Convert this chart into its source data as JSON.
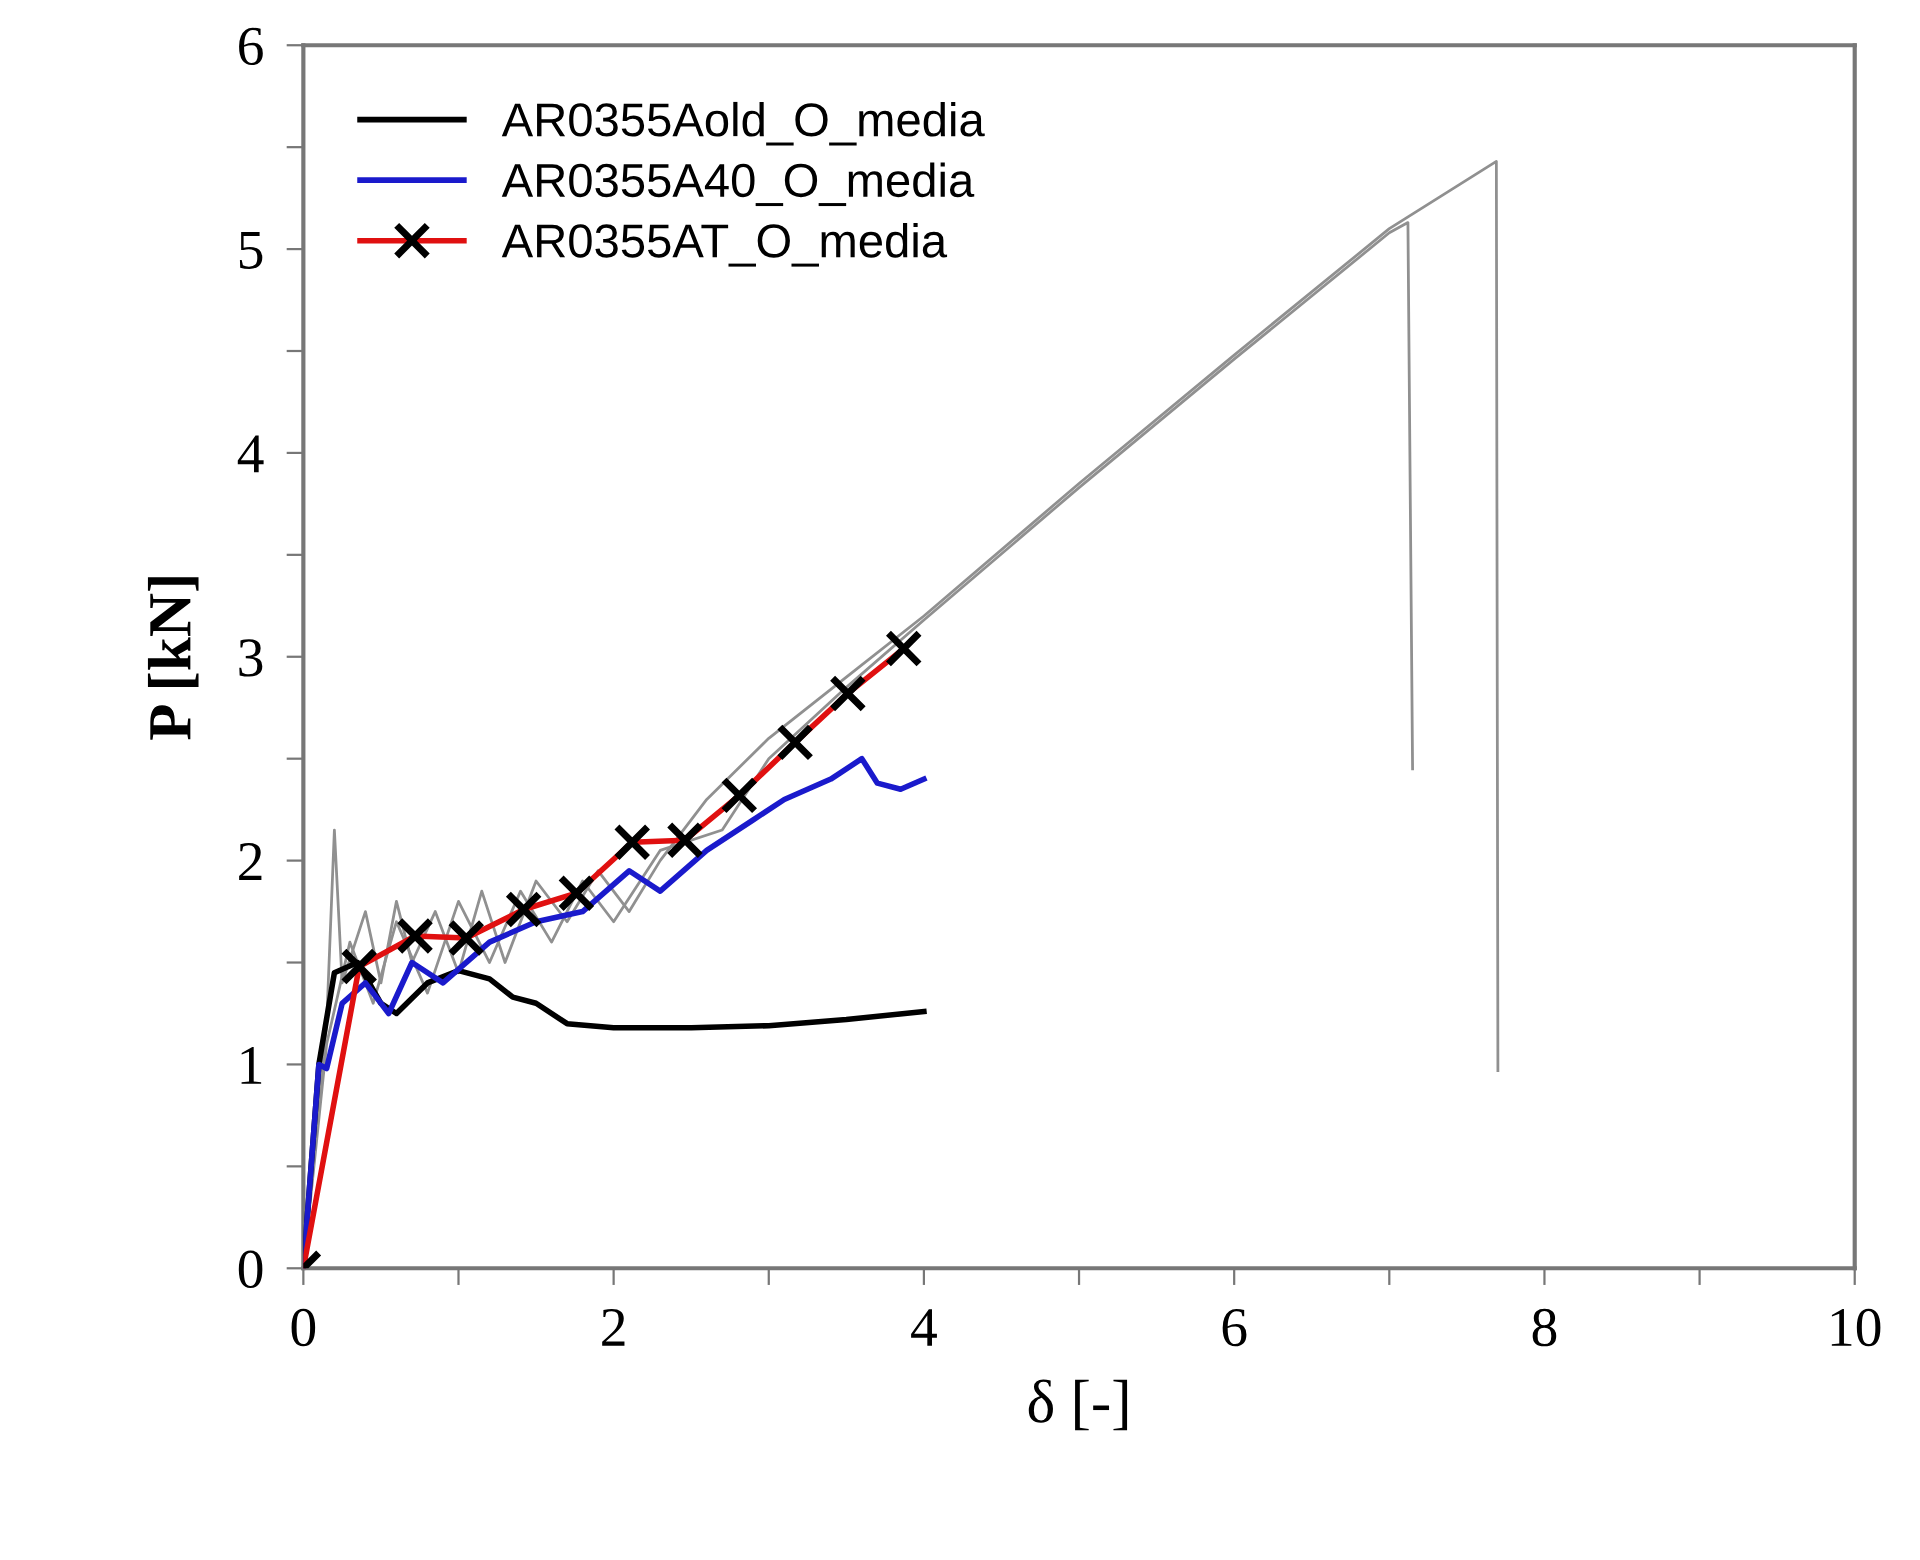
{
  "chart_data": {
    "type": "line",
    "xlabel": "δ [-]",
    "ylabel": "P [kN]",
    "xlim": [
      0,
      10
    ],
    "ylim": [
      0,
      6
    ],
    "xticks": [
      0,
      {
        "value": 1,
        "label": null
      },
      2,
      {
        "value": 3,
        "label": null
      },
      4,
      {
        "value": 5,
        "label": null
      },
      6,
      {
        "value": 7,
        "label": null
      },
      8,
      {
        "value": 9,
        "label": null
      },
      10
    ],
    "yticks": [
      0,
      {
        "value": 0.5,
        "label": null
      },
      1,
      {
        "value": 1.5,
        "label": null
      },
      2,
      {
        "value": 2.5,
        "label": null
      },
      3,
      {
        "value": 3.5,
        "label": null
      },
      4,
      {
        "value": 4.5,
        "label": null
      },
      5,
      {
        "value": 5.5,
        "label": null
      },
      6
    ],
    "grid": false,
    "legend": "top left",
    "series": [
      {
        "color": "#909090",
        "x": [
          0,
          0.15,
          0.2,
          0.25,
          0.4,
          0.5,
          0.6,
          0.7,
          0.85,
          1.0,
          1.15,
          1.3,
          1.5,
          1.7,
          1.9,
          2.1,
          2.3,
          2.6,
          3.0,
          3.5,
          4.0,
          5.0,
          6.0,
          7.0,
          7.69,
          7.7
        ],
        "values": [
          0,
          1.2,
          2.15,
          1.4,
          1.75,
          1.4,
          1.8,
          1.5,
          1.75,
          1.45,
          1.85,
          1.5,
          1.9,
          1.7,
          1.95,
          1.75,
          2.0,
          2.3,
          2.6,
          2.9,
          3.2,
          3.85,
          4.48,
          5.1,
          5.43,
          0.97
        ]
      },
      {
        "color": "#909090",
        "x": [
          0,
          0.15,
          0.3,
          0.45,
          0.6,
          0.8,
          1.0,
          1.2,
          1.4,
          1.6,
          1.8,
          2.0,
          2.3,
          2.7,
          3.0,
          3.5,
          4.0,
          5.0,
          6.0,
          7.0,
          7.12,
          7.15
        ],
        "values": [
          0,
          1.1,
          1.6,
          1.3,
          1.7,
          1.35,
          1.8,
          1.5,
          1.85,
          1.6,
          1.9,
          1.7,
          2.05,
          2.15,
          2.5,
          2.85,
          3.18,
          3.83,
          4.46,
          5.08,
          5.13,
          2.45
        ]
      },
      {
        "name": "AR0355Aold_O_media",
        "color": "#000000",
        "x": [
          0,
          0.1,
          0.2,
          0.35,
          0.5,
          0.6,
          0.8,
          1.0,
          1.2,
          1.35,
          1.5,
          1.7,
          2.0,
          2.5,
          3.0,
          3.5,
          4.0
        ],
        "values": [
          0,
          1.0,
          1.45,
          1.5,
          1.3,
          1.25,
          1.4,
          1.46,
          1.42,
          1.33,
          1.3,
          1.2,
          1.18,
          1.18,
          1.19,
          1.22,
          1.26
        ]
      },
      {
        "name": "AR0355A40_O_media",
        "color": "#1a1acc",
        "x": [
          0,
          0.1,
          0.15,
          0.25,
          0.4,
          0.55,
          0.7,
          0.9,
          1.2,
          1.5,
          1.8,
          2.1,
          2.3,
          2.6,
          2.9,
          3.1,
          3.4,
          3.6,
          3.7,
          3.85,
          4.0
        ],
        "values": [
          0,
          1.0,
          0.98,
          1.3,
          1.4,
          1.25,
          1.5,
          1.4,
          1.6,
          1.7,
          1.75,
          1.95,
          1.85,
          2.05,
          2.2,
          2.3,
          2.4,
          2.5,
          2.38,
          2.35,
          2.4
        ]
      },
      {
        "name": "AR0355AT_O_media",
        "color": "#e01010",
        "marker": "cross",
        "x": [
          0,
          0.36,
          0.72,
          1.05,
          1.42,
          1.76,
          2.12,
          2.46,
          2.81,
          3.17,
          3.51,
          3.87
        ],
        "values": [
          0,
          1.48,
          1.63,
          1.62,
          1.76,
          1.84,
          2.09,
          2.1,
          2.32,
          2.58,
          2.82,
          3.04
        ]
      }
    ]
  }
}
